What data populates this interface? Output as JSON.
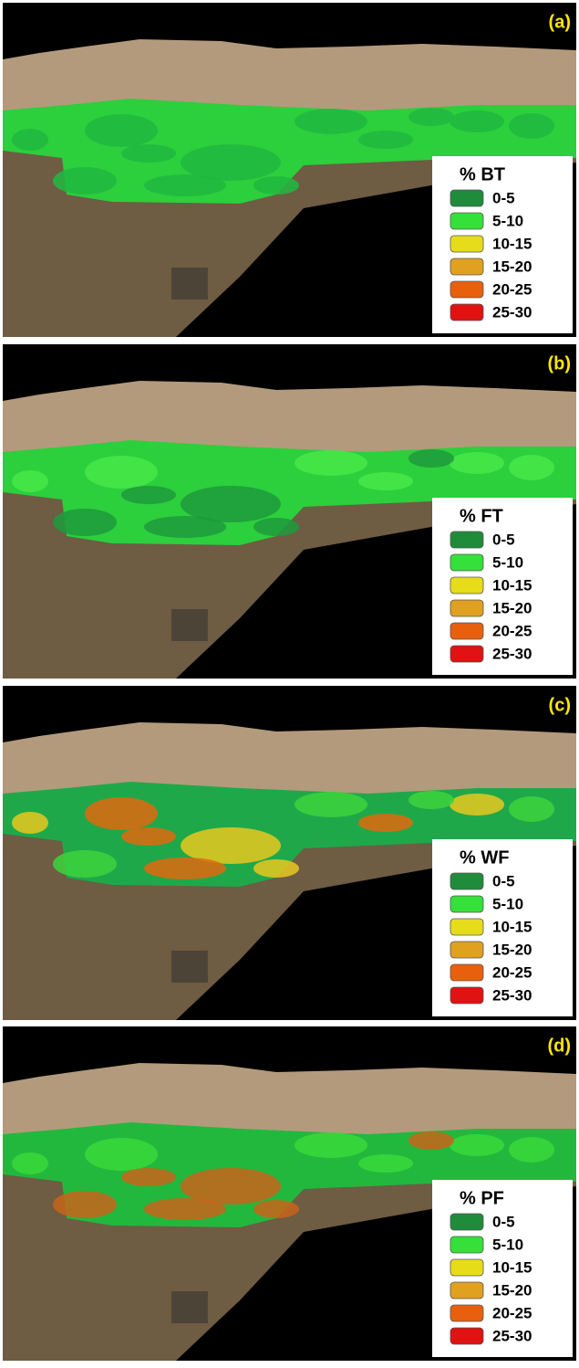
{
  "panels": [
    {
      "label": "(a)",
      "legend_title": "% BT",
      "overlay_colors": [
        "#2ccf3c",
        "#20b840"
      ],
      "legend": [
        {
          "range": "0-5",
          "color": "#1e8c3a"
        },
        {
          "range": "5-10",
          "color": "#35e03a"
        },
        {
          "range": "10-15",
          "color": "#e6dc1a"
        },
        {
          "range": "15-20",
          "color": "#e0a020"
        },
        {
          "range": "20-25",
          "color": "#e8600e"
        },
        {
          "range": "25-30",
          "color": "#e01212"
        }
      ]
    },
    {
      "label": "(b)",
      "legend_title": "% FT",
      "overlay_colors": [
        "#2ccf3c",
        "#48e848",
        "#1f9a3c"
      ],
      "legend": [
        {
          "range": "0-5",
          "color": "#1e8c3a"
        },
        {
          "range": "5-10",
          "color": "#35e03a"
        },
        {
          "range": "10-15",
          "color": "#e6dc1a"
        },
        {
          "range": "15-20",
          "color": "#e0a020"
        },
        {
          "range": "20-25",
          "color": "#e8600e"
        },
        {
          "range": "25-30",
          "color": "#e01212"
        }
      ]
    },
    {
      "label": "(c)",
      "legend_title": "% WF",
      "overlay_colors": [
        "#1fa84a",
        "#e0680e",
        "#e8c820",
        "#3cd43c"
      ],
      "legend": [
        {
          "range": "0-5",
          "color": "#1e8c3a"
        },
        {
          "range": "5-10",
          "color": "#35e03a"
        },
        {
          "range": "10-15",
          "color": "#e6dc1a"
        },
        {
          "range": "15-20",
          "color": "#e0a020"
        },
        {
          "range": "20-25",
          "color": "#e8600e"
        },
        {
          "range": "25-30",
          "color": "#e01212"
        }
      ]
    },
    {
      "label": "(d)",
      "legend_title": "% PF",
      "overlay_colors": [
        "#22b83e",
        "#38d83a",
        "#c8641a"
      ],
      "legend": [
        {
          "range": "0-5",
          "color": "#1e8c3a"
        },
        {
          "range": "5-10",
          "color": "#35e03a"
        },
        {
          "range": "10-15",
          "color": "#e6dc1a"
        },
        {
          "range": "15-20",
          "color": "#e0a020"
        },
        {
          "range": "20-25",
          "color": "#e8600e"
        },
        {
          "range": "25-30",
          "color": "#e01212"
        }
      ]
    }
  ]
}
